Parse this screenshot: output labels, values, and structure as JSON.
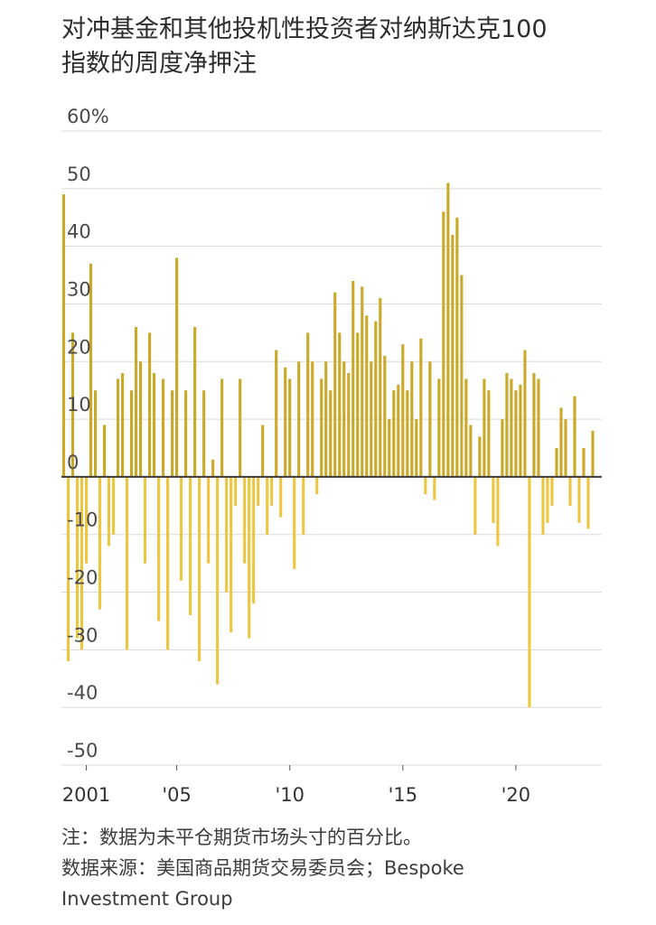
{
  "title_line1": "对冲基金和其他投机性投资者对纳斯达克100",
  "title_line2": "指数的周度净押注",
  "note": "注：数据为未平仓期货市场头寸的百分比。",
  "source_line1": "数据来源：美国商品期货交易委员会；Bespoke",
  "source_line2": "Investment Group",
  "chart_data": {
    "type": "bar",
    "title": "对冲基金和其他投机性投资者对纳斯达克100指数的周度净押注",
    "xlabel": "",
    "ylabel": "",
    "ylim": [
      -50,
      60
    ],
    "xlim": [
      1999.9,
      2023.8
    ],
    "y_ticks": [
      {
        "value": 60,
        "label": "60%"
      },
      {
        "value": 50,
        "label": "50"
      },
      {
        "value": 40,
        "label": "40"
      },
      {
        "value": 30,
        "label": "30"
      },
      {
        "value": 20,
        "label": "20"
      },
      {
        "value": 10,
        "label": "10"
      },
      {
        "value": 0,
        "label": "0"
      },
      {
        "value": -10,
        "label": "-10"
      },
      {
        "value": -20,
        "label": "-20"
      },
      {
        "value": -30,
        "label": "-30"
      },
      {
        "value": -40,
        "label": "-40"
      },
      {
        "value": -50,
        "label": "-50"
      }
    ],
    "x_ticks": [
      {
        "value": 2001,
        "label": "2001"
      },
      {
        "value": 2005,
        "label": "'05"
      },
      {
        "value": 2010,
        "label": "'10"
      },
      {
        "value": 2015,
        "label": "'15"
      },
      {
        "value": 2020,
        "label": "'20"
      }
    ],
    "grid": true,
    "colors": {
      "positive": "#c9a927",
      "negative": "#edc640",
      "grid": "#d9d9d9",
      "zero_line": "#3a3a3a"
    },
    "x": [
      2000.0,
      2000.2,
      2000.4,
      2000.6,
      2000.8,
      2001.0,
      2001.2,
      2001.4,
      2001.6,
      2001.8,
      2002.0,
      2002.2,
      2002.4,
      2002.6,
      2002.8,
      2003.0,
      2003.2,
      2003.4,
      2003.6,
      2003.8,
      2004.0,
      2004.2,
      2004.4,
      2004.6,
      2004.8,
      2005.0,
      2005.2,
      2005.4,
      2005.6,
      2005.8,
      2006.0,
      2006.2,
      2006.4,
      2006.6,
      2006.8,
      2007.0,
      2007.2,
      2007.4,
      2007.6,
      2007.8,
      2008.0,
      2008.2,
      2008.4,
      2008.6,
      2008.8,
      2009.0,
      2009.2,
      2009.4,
      2009.6,
      2009.8,
      2010.0,
      2010.2,
      2010.4,
      2010.6,
      2010.8,
      2011.0,
      2011.2,
      2011.4,
      2011.6,
      2011.8,
      2012.0,
      2012.2,
      2012.4,
      2012.6,
      2012.8,
      2013.0,
      2013.2,
      2013.4,
      2013.6,
      2013.8,
      2014.0,
      2014.2,
      2014.4,
      2014.6,
      2014.8,
      2015.0,
      2015.2,
      2015.4,
      2015.6,
      2015.8,
      2016.0,
      2016.2,
      2016.4,
      2016.6,
      2016.8,
      2017.0,
      2017.2,
      2017.4,
      2017.6,
      2017.8,
      2018.0,
      2018.2,
      2018.4,
      2018.6,
      2018.8,
      2019.0,
      2019.2,
      2019.4,
      2019.6,
      2019.8,
      2020.0,
      2020.2,
      2020.4,
      2020.6,
      2020.8,
      2021.0,
      2021.2,
      2021.4,
      2021.6,
      2021.8,
      2022.0,
      2022.2,
      2022.4,
      2022.6,
      2022.8,
      2023.0,
      2023.2,
      2023.4
    ],
    "values": [
      49,
      -32,
      25,
      -28,
      -30,
      -15,
      37,
      15,
      -23,
      9,
      -12,
      -10,
      17,
      18,
      -30,
      15,
      26,
      20,
      -15,
      25,
      18,
      -25,
      17,
      -30,
      15,
      38,
      -18,
      15,
      -24,
      26,
      -32,
      15,
      -15,
      3,
      -36,
      17,
      -20,
      -27,
      -5,
      17,
      -15,
      -28,
      -22,
      -5,
      9,
      -10,
      -5,
      22,
      -7,
      19,
      17,
      -16,
      20,
      -10,
      25,
      20,
      -3,
      17,
      20,
      15,
      32,
      25,
      20,
      18,
      34,
      25,
      33,
      28,
      20,
      27,
      31,
      21,
      10,
      15,
      16,
      23,
      15,
      20,
      10,
      24,
      -3,
      20,
      -4,
      17,
      46,
      51,
      42,
      45,
      35,
      17,
      9,
      -10,
      7,
      17,
      15,
      -8,
      -12,
      10,
      18,
      17,
      15,
      16,
      22,
      -40,
      18,
      17,
      -10,
      -8,
      -5,
      5,
      12,
      10,
      -5,
      14,
      -8,
      5,
      -9,
      8
    ]
  }
}
